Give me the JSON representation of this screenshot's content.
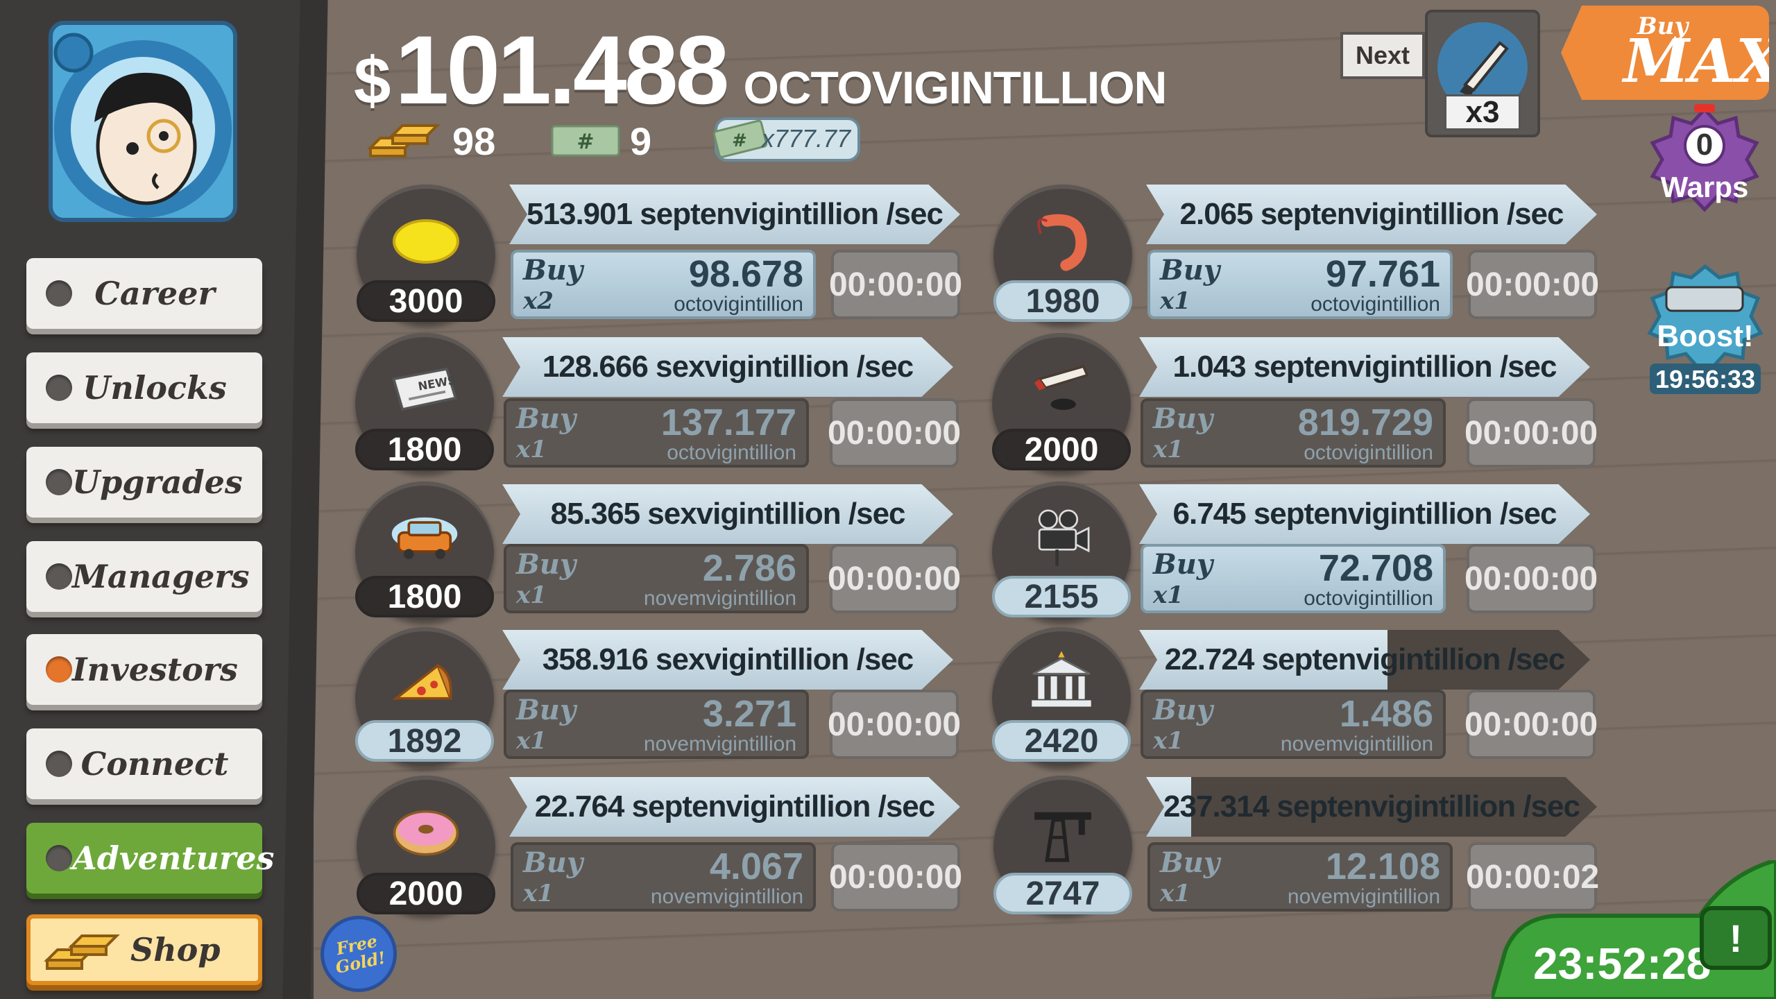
{
  "header": {
    "currency_symbol": "$",
    "money_amount": "101.488",
    "money_unit": "OCTOVIGINTILLION",
    "gold_count": "98",
    "megaticket_count": "9",
    "angel_multiplier": "x777.77"
  },
  "sidebar": {
    "items": [
      {
        "label": "Career",
        "active": false
      },
      {
        "label": "Unlocks",
        "active": false
      },
      {
        "label": "Upgrades",
        "active": false
      },
      {
        "label": "Managers",
        "active": false
      },
      {
        "label": "Investors",
        "active": true
      },
      {
        "label": "Connect",
        "active": false
      },
      {
        "label": "Adventures",
        "active": false
      },
      {
        "label": "Shop",
        "active": false
      }
    ],
    "free_gold_label": "Free Gold!"
  },
  "businesses": [
    {
      "name": "lemonade",
      "icon": "lemon-icon",
      "count": "3000",
      "revenue": "513.901 septenvigintillion /sec",
      "progress": 1.0,
      "buy_label": "Buy",
      "buy_qty": "x2",
      "cost": "98.678",
      "cost_unit": "octovigintillion",
      "affordable": true,
      "timer": "00:00:00"
    },
    {
      "name": "newspaper",
      "icon": "newspaper-icon",
      "count": "1800",
      "revenue": "128.666 sexvigintillion /sec",
      "progress": 1.0,
      "buy_label": "Buy",
      "buy_qty": "x1",
      "cost": "137.177",
      "cost_unit": "octovigintillion",
      "affordable": false,
      "timer": "00:00:00"
    },
    {
      "name": "car-wash",
      "icon": "car-icon",
      "count": "1800",
      "revenue": "85.365 sexvigintillion /sec",
      "progress": 1.0,
      "buy_label": "Buy",
      "buy_qty": "x1",
      "cost": "2.786",
      "cost_unit": "novemvigintillion",
      "affordable": false,
      "timer": "00:00:00"
    },
    {
      "name": "pizza",
      "icon": "pizza-icon",
      "count": "1892",
      "revenue": "358.916 sexvigintillion /sec",
      "progress": 1.0,
      "buy_label": "Buy",
      "buy_qty": "x1",
      "cost": "3.271",
      "cost_unit": "novemvigintillion",
      "affordable": false,
      "timer": "00:00:00"
    },
    {
      "name": "donut",
      "icon": "donut-icon",
      "count": "2000",
      "revenue": "22.764 septenvigintillion /sec",
      "progress": 1.0,
      "buy_label": "Buy",
      "buy_qty": "x1",
      "cost": "4.067",
      "cost_unit": "novemvigintillion",
      "affordable": false,
      "timer": "00:00:00"
    },
    {
      "name": "shrimp",
      "icon": "shrimp-icon",
      "count": "1980",
      "revenue": "2.065 septenvigintillion /sec",
      "progress": 1.0,
      "buy_label": "Buy",
      "buy_qty": "x1",
      "cost": "97.761",
      "cost_unit": "octovigintillion",
      "affordable": true,
      "timer": "00:00:00"
    },
    {
      "name": "hockey",
      "icon": "hockey-icon",
      "count": "2000",
      "revenue": "1.043 septenvigintillion /sec",
      "progress": 1.0,
      "buy_label": "Buy",
      "buy_qty": "x1",
      "cost": "819.729",
      "cost_unit": "octovigintillion",
      "affordable": false,
      "timer": "00:00:00"
    },
    {
      "name": "movie",
      "icon": "movie-camera-icon",
      "count": "2155",
      "revenue": "6.745 septenvigintillion /sec",
      "progress": 1.0,
      "buy_label": "Buy",
      "buy_qty": "x1",
      "cost": "72.708",
      "cost_unit": "octovigintillion",
      "affordable": true,
      "timer": "00:00:00"
    },
    {
      "name": "bank",
      "icon": "bank-icon",
      "count": "2420",
      "revenue": "22.724 septenvigintillion /sec",
      "progress": 0.55,
      "buy_label": "Buy",
      "buy_qty": "x1",
      "cost": "1.486",
      "cost_unit": "novemvigintillion",
      "affordable": false,
      "timer": "00:00:00"
    },
    {
      "name": "oil",
      "icon": "oil-rig-icon",
      "count": "2747",
      "revenue": "237.314 septenvigintillion /sec",
      "progress": 0.1,
      "buy_label": "Buy",
      "buy_qty": "x1",
      "cost": "12.108",
      "cost_unit": "novemvigintillion",
      "affordable": false,
      "timer": "00:00:02"
    }
  ],
  "next_unlock": {
    "label": "Next",
    "multiplier": "x3",
    "icon": "hockey-icon"
  },
  "buy_max": {
    "top": "Buy",
    "main": "MAX"
  },
  "warps": {
    "count": "0",
    "label": "Warps"
  },
  "boost": {
    "label": "Boost!",
    "timer": "19:56:33"
  },
  "tv": {
    "timer": "23:52:28",
    "alert": "!"
  }
}
